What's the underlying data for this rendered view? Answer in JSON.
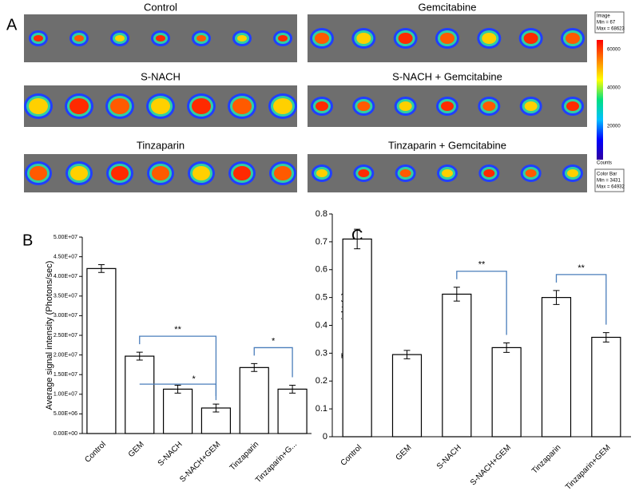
{
  "figure": {
    "panel_labels": [
      "A",
      "B",
      "C"
    ],
    "image_titles": [
      "Control",
      "Gemcitabine",
      "S-NACH",
      "S-NACH + Gemcitabine",
      "Tinzaparin",
      "Tinzaparin + Gemcitabine"
    ],
    "colorbar": {
      "top_box": [
        "Image",
        "Min = 67",
        "Max = 68623"
      ],
      "ticks": [
        "60000",
        "40000",
        "20000"
      ],
      "unit": "Counts",
      "bottom_box": [
        "Color Bar",
        "Min = 3431",
        "Max = 64932"
      ]
    }
  },
  "chart_data": [
    {
      "type": "bar",
      "y_label": "Average signal intensity (Photons/sec)",
      "categories": [
        "Control",
        "GEM",
        "S-NACH",
        "S-NACH+GEM",
        "Tinzaparin",
        "Tinzaparin+G..."
      ],
      "values": [
        42000000,
        19700000,
        11300000,
        6500000,
        16800000,
        11300000
      ],
      "errors": [
        1000000,
        1000000,
        1000000,
        1000000,
        1000000,
        1000000
      ],
      "color": "#ffffff",
      "ylim": [
        0,
        50000000
      ],
      "yticks": [
        {
          "value": 0,
          "label": "0.00E+00"
        },
        {
          "value": 5000000,
          "label": "5.00E+06"
        },
        {
          "value": 10000000,
          "label": "1.00E+07"
        },
        {
          "value": 15000000,
          "label": "1.50E+07"
        },
        {
          "value": 20000000,
          "label": "2.00E+07"
        },
        {
          "value": 25000000,
          "label": "2.50E+07"
        },
        {
          "value": 30000000,
          "label": "3.00E+07"
        },
        {
          "value": 35000000,
          "label": "3.50E+07"
        },
        {
          "value": 40000000,
          "label": "4.00E+07"
        },
        {
          "value": 45000000,
          "label": "4.50E+07"
        },
        {
          "value": 50000000,
          "label": "5.00E+07"
        }
      ],
      "annotations": [
        "**",
        "*",
        "*"
      ]
    },
    {
      "type": "bar",
      "y_label": "Tumor weight (g)",
      "categories": [
        "Control",
        "GEM",
        "S-NACH",
        "S-NACH+GEM",
        "Tinzaparin",
        "Tinzaparin+GEM"
      ],
      "values": [
        0.71,
        0.295,
        0.512,
        0.32,
        0.5,
        0.357
      ],
      "errors": [
        0.035,
        0.015,
        0.025,
        0.017,
        0.025,
        0.017
      ],
      "color": "#ffffff",
      "ylim": [
        0,
        0.8
      ],
      "yticks": [
        0,
        0.1,
        0.2,
        0.3,
        0.4,
        0.5,
        0.6,
        0.7,
        0.8
      ],
      "annotations": [
        "**",
        "**"
      ]
    }
  ]
}
